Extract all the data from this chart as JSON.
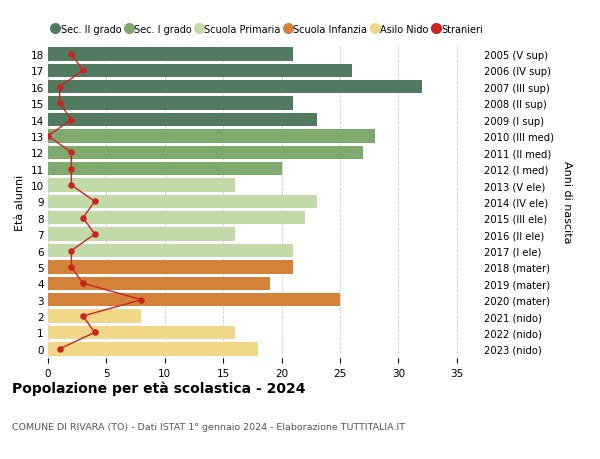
{
  "ages": [
    18,
    17,
    16,
    15,
    14,
    13,
    12,
    11,
    10,
    9,
    8,
    7,
    6,
    5,
    4,
    3,
    2,
    1,
    0
  ],
  "right_labels": [
    "2005 (V sup)",
    "2006 (IV sup)",
    "2007 (III sup)",
    "2008 (II sup)",
    "2009 (I sup)",
    "2010 (III med)",
    "2011 (II med)",
    "2012 (I med)",
    "2013 (V ele)",
    "2014 (IV ele)",
    "2015 (III ele)",
    "2016 (II ele)",
    "2017 (I ele)",
    "2018 (mater)",
    "2019 (mater)",
    "2020 (mater)",
    "2021 (nido)",
    "2022 (nido)",
    "2023 (nido)"
  ],
  "bar_values": [
    21,
    26,
    32,
    21,
    23,
    28,
    27,
    20,
    16,
    23,
    22,
    16,
    21,
    21,
    19,
    25,
    8,
    16,
    18
  ],
  "bar_colors": [
    "#527a5f",
    "#527a5f",
    "#527a5f",
    "#527a5f",
    "#527a5f",
    "#7faa6e",
    "#7faa6e",
    "#7faa6e",
    "#c2d9a8",
    "#c2d9a8",
    "#c2d9a8",
    "#c2d9a8",
    "#c2d9a8",
    "#d4813a",
    "#d4813a",
    "#d4813a",
    "#f0d888",
    "#f0d888",
    "#f0d888"
  ],
  "stranieri_values": [
    2,
    3,
    1,
    1,
    2,
    0,
    2,
    2,
    2,
    4,
    3,
    4,
    2,
    2,
    3,
    8,
    3,
    4,
    1
  ],
  "legend_labels": [
    "Sec. II grado",
    "Sec. I grado",
    "Scuola Primaria",
    "Scuola Infanzia",
    "Asilo Nido",
    "Stranieri"
  ],
  "legend_colors": [
    "#527a5f",
    "#7faa6e",
    "#c2d9a8",
    "#d4813a",
    "#f0d888",
    "#cc2222"
  ],
  "title": "Popolazione per età scolastica - 2024",
  "subtitle": "COMUNE DI RIVARA (TO) - Dati ISTAT 1° gennaio 2024 - Elaborazione TUTTITALIA.IT",
  "ylabel_left": "Età alunni",
  "ylabel_right": "Anni di nascita",
  "xlim": [
    0,
    37
  ],
  "bg_color": "#ffffff",
  "grid_color": "#cccccc",
  "bar_height": 0.82
}
